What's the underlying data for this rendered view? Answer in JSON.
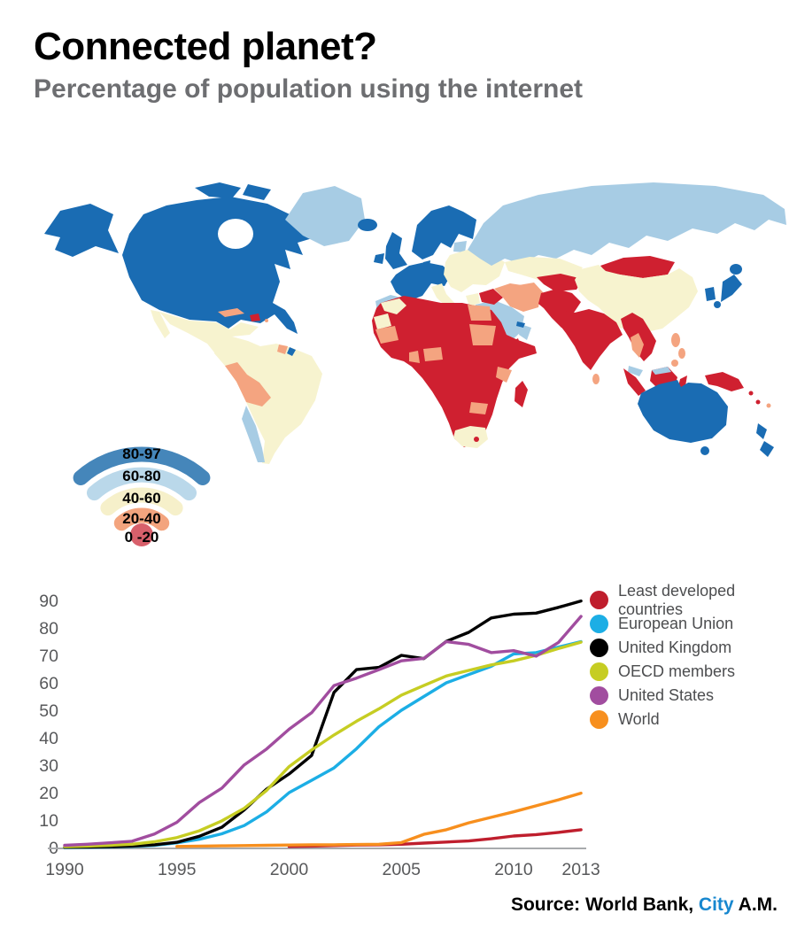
{
  "header": {
    "title": "Connected planet?",
    "subtitle": "Percentage of population using the internet"
  },
  "map_legend": {
    "bands": [
      {
        "key": "80-97",
        "label": "80-97",
        "color": "#4586ba"
      },
      {
        "key": "60-80",
        "label": "60-80",
        "color": "#bad8ea"
      },
      {
        "key": "40-60",
        "label": "40-60",
        "color": "#f6f0ca"
      },
      {
        "key": "20-40",
        "label": "20-40",
        "color": "#f3a47e"
      },
      {
        "key": "0-20",
        "label": "0 -20",
        "color": "#d8606b"
      }
    ]
  },
  "map": {
    "type": "choropleth",
    "sea_color": "#ffffff",
    "colors": {
      "80-97": "#1a6cb3",
      "60-80": "#a7cce4",
      "40-60": "#f7f3cf",
      "20-40": "#f4a480",
      "0-20": "#cf2030",
      "sea": "#ffffff"
    },
    "region_bands": {
      "alaska": "80-97",
      "arctic-islands": "80-97",
      "canada-usa": "80-97",
      "hudson-bay": "sea",
      "greenland": "60-80",
      "iceland": "80-97",
      "baja-california": "40-60",
      "mexico-central-america": "40-60",
      "guatemala": "0-20",
      "cuba": "20-40",
      "hispaniola": "0-20",
      "puerto-rico": "20-40",
      "south-america": "40-60",
      "guyana-suriname": "20-40",
      "french-guiana": "80-97",
      "peru-bolivia": "20-40",
      "chile": "60-80",
      "united-kingdom": "80-97",
      "ireland": "80-97",
      "scandinavia": "80-97",
      "denmark": "80-97",
      "baltics": "60-80",
      "western-europe": "80-97",
      "iberia": "60-80",
      "italy": "40-60",
      "sicily": "40-60",
      "eastern-europe": "40-60",
      "greece": "40-60",
      "russia": "60-80",
      "kazakhstan": "40-60",
      "turkmenistan": "20-40",
      "uzbekistan": "0-20",
      "mongolia": "0-20",
      "china": "40-60",
      "south-korea": "80-97",
      "japan-hokkaido": "80-97",
      "japan-honshu": "80-97",
      "japan-kyushu": "80-97",
      "saudi-arabia": "60-80",
      "yemen": "0-20",
      "oman": "60-80",
      "uae": "80-97",
      "iraq": "0-20",
      "iran": "20-40",
      "afghanistan-pakistan": "0-20",
      "india": "0-20",
      "sri-lanka": "20-40",
      "indochina": "0-20",
      "thailand": "20-40",
      "malaysia": "60-80",
      "philippines-luzon": "20-40",
      "philippines-visayas": "20-40",
      "philippines-mindanao": "20-40",
      "sumatra": "0-20",
      "java": "0-20",
      "borneo": "0-20",
      "malaysia-borneo": "60-80",
      "sulawesi": "0-20",
      "new-guinea": "0-20",
      "solomon-islands": "0-20",
      "vanuatu": "0-20",
      "fiji": "20-40",
      "africa": "0-20",
      "morocco": "40-60",
      "western-sahara": "40-60",
      "mauritania": "20-40",
      "egypt": "20-40",
      "sudan": "20-40",
      "ghana": "20-40",
      "nigeria": "20-40",
      "kenya": "20-40",
      "zimbabwe": "20-40",
      "south-africa": "40-60",
      "lesotho": "0-20",
      "madagascar": "0-20",
      "australia": "80-97",
      "tasmania": "80-97",
      "new-zealand-north": "80-97",
      "new-zealand-south": "80-97"
    }
  },
  "chart_data": {
    "type": "line",
    "title": "",
    "xlabel": "",
    "ylabel": "",
    "grid": false,
    "legend_position": "right",
    "xlim": [
      1990,
      2013
    ],
    "ylim": [
      0,
      90
    ],
    "x_ticks": [
      1990,
      1995,
      2000,
      2005,
      2010,
      2013
    ],
    "y_ticks": [
      0,
      10,
      20,
      30,
      40,
      50,
      60,
      70,
      80,
      90
    ],
    "tick_color": "#58595b",
    "axis_color": "#a8aaad",
    "x": [
      1990,
      1991,
      1992,
      1993,
      1994,
      1995,
      1996,
      1997,
      1998,
      1999,
      2000,
      2001,
      2002,
      2003,
      2004,
      2005,
      2006,
      2007,
      2008,
      2009,
      2010,
      2011,
      2012,
      2013
    ],
    "series": [
      {
        "name": "Least developed countries",
        "color": "#bf1e2d",
        "values": [
          null,
          null,
          null,
          null,
          null,
          null,
          null,
          null,
          null,
          null,
          0.4,
          0.5,
          0.7,
          0.9,
          1.0,
          1.2,
          1.6,
          2.0,
          2.4,
          3.2,
          4.2,
          4.7,
          5.5,
          6.5
        ]
      },
      {
        "name": "European Union",
        "color": "#1caee5",
        "values": [
          0,
          0.1,
          0.2,
          0.4,
          0.8,
          1.7,
          3.0,
          5.0,
          8.0,
          13.0,
          20.0,
          24.5,
          29.0,
          36.0,
          44.0,
          50.0,
          55.0,
          60.0,
          63.0,
          66.0,
          70.5,
          71.0,
          73.0,
          75.0
        ]
      },
      {
        "name": "United Kingdom",
        "color": "#000000",
        "values": [
          0.1,
          0.2,
          0.3,
          0.5,
          1.0,
          1.9,
          4.1,
          7.4,
          13.7,
          21.3,
          26.8,
          33.5,
          56.5,
          64.8,
          65.6,
          70.0,
          68.8,
          75.1,
          78.4,
          83.6,
          85.0,
          85.4,
          87.5,
          89.8
        ]
      },
      {
        "name": "OECD members",
        "color": "#c6cd23",
        "values": [
          0.3,
          0.5,
          0.8,
          1.2,
          2.1,
          3.6,
          6.1,
          9.7,
          14.3,
          20.8,
          29.5,
          35.5,
          41.0,
          46.0,
          50.5,
          55.5,
          59.0,
          62.5,
          64.5,
          66.5,
          68.0,
          70.0,
          72.5,
          74.8
        ]
      },
      {
        "name": "United States",
        "color": "#a14d9f",
        "values": [
          0.8,
          1.2,
          1.7,
          2.3,
          4.9,
          9.2,
          16.4,
          21.6,
          30.1,
          35.9,
          43.1,
          49.1,
          59.0,
          61.7,
          64.8,
          68.0,
          68.9,
          75.0,
          74.0,
          71.0,
          71.7,
          69.7,
          74.7,
          84.2
        ]
      },
      {
        "name": "World",
        "color": "#f78f1e",
        "values": [
          null,
          null,
          null,
          null,
          null,
          0.4,
          0.5,
          0.6,
          0.7,
          0.8,
          0.9,
          1.0,
          1.0,
          1.1,
          1.2,
          1.8,
          4.8,
          6.5,
          9.0,
          11.0,
          13.0,
          15.2,
          17.4,
          19.8
        ]
      }
    ]
  },
  "source": {
    "prefix": "Source: World Bank, ",
    "brand": "City",
    "brand_color": "#1787cf",
    "suffix": " A.M."
  }
}
